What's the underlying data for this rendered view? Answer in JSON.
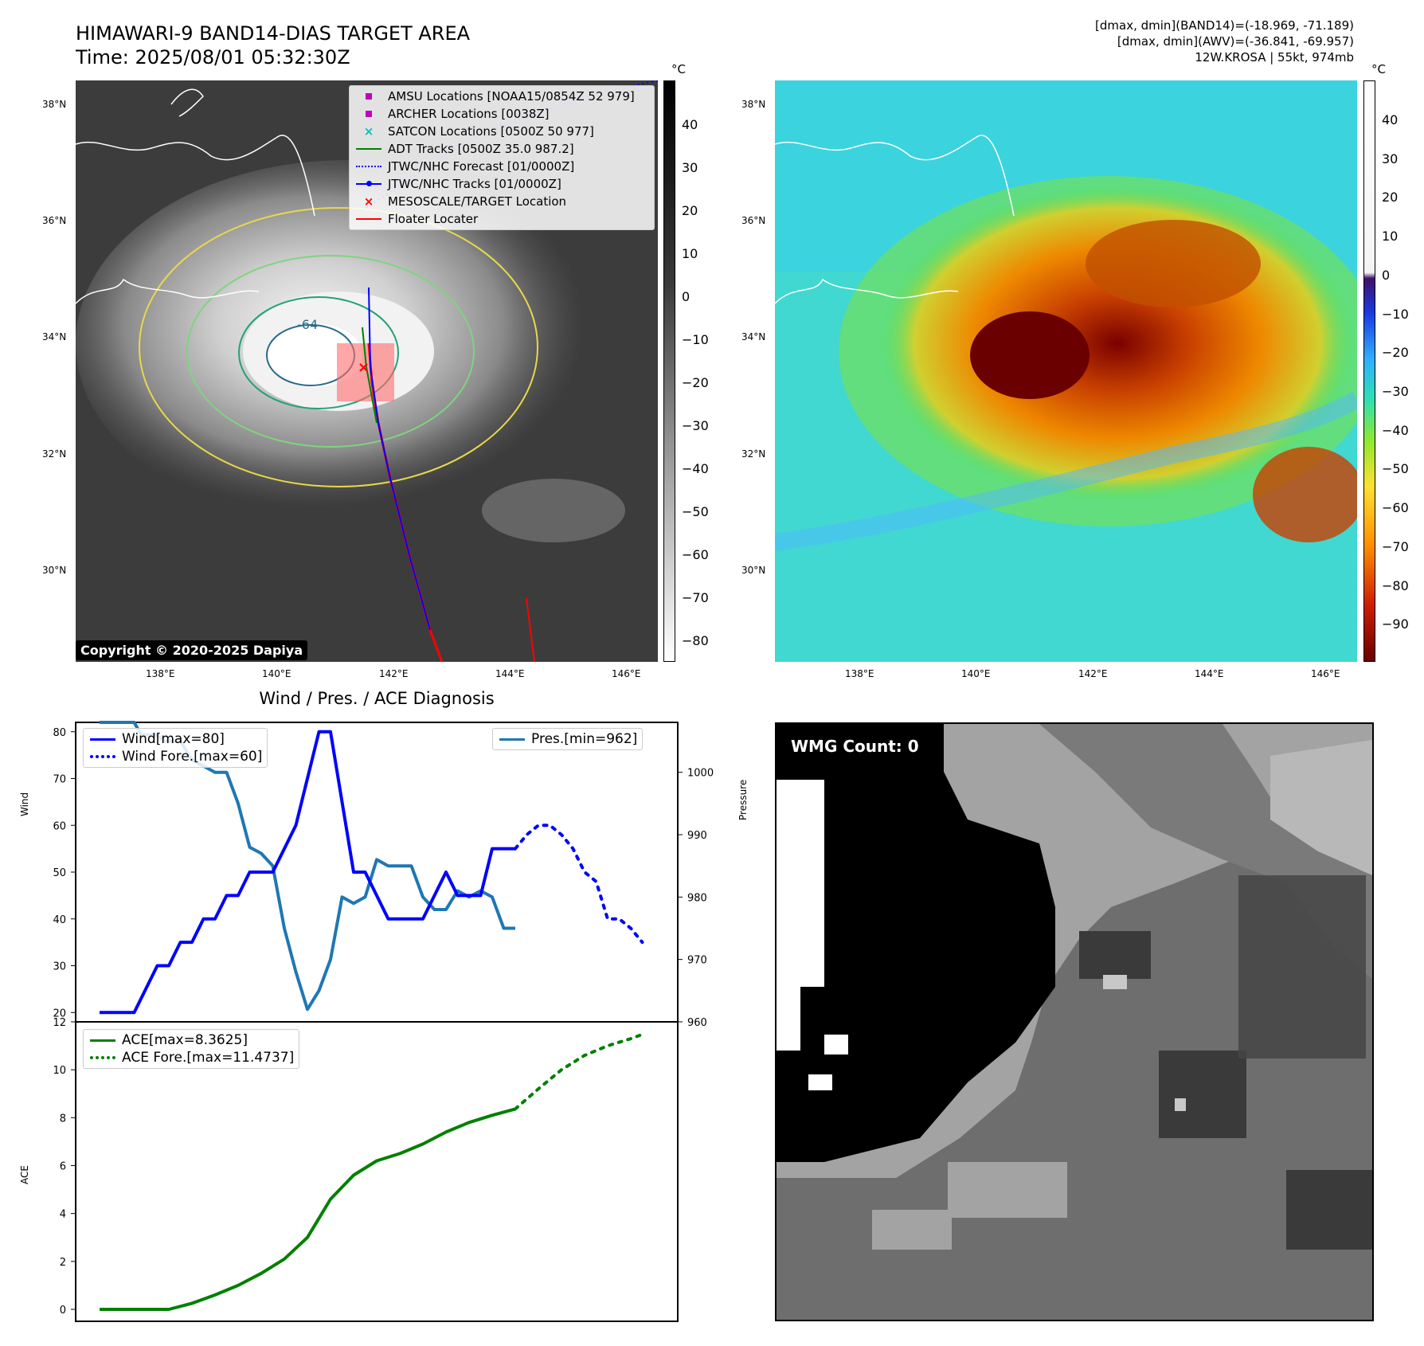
{
  "header": {
    "title_line1": "HIMAWARI-9 BAND14-DIAS TARGET AREA",
    "title_line2": "Time: 2025/08/01 05:32:30Z",
    "info_line1": "[dmax, dmin](BAND14)=(-18.969, -71.189)",
    "info_line2": "[dmax, dmin](AWV)=(-36.841, -69.957)",
    "info_line3": "12W.KROSA | 55kt, 974mb"
  },
  "maps": {
    "lat_labels": [
      "38°N",
      "36°N",
      "34°N",
      "32°N",
      "30°N"
    ],
    "lon_labels": [
      "138°E",
      "140°E",
      "142°E",
      "144°E",
      "146°E"
    ],
    "contour_label": "-64",
    "copyright": "Copyright © 2020-2025 Dapiya"
  },
  "legend_map": {
    "items": [
      {
        "label": "AMSU Locations [NOAA15/0854Z 52 979]",
        "symbol": "square",
        "color": "#bf00bf"
      },
      {
        "label": "ARCHER Locations [0038Z]",
        "symbol": "square",
        "color": "#bf00bf"
      },
      {
        "label": "SATCON Locations [0500Z 50 977]",
        "symbol": "x",
        "color": "#00bfbf"
      },
      {
        "label": "ADT Tracks [0500Z 35.0 987.2]",
        "symbol": "line",
        "color": "#008000"
      },
      {
        "label": "JTWC/NHC Forecast [01/0000Z]",
        "symbol": "dotted",
        "color": "#0000ff"
      },
      {
        "label": "JTWC/NHC Tracks [01/0000Z]",
        "symbol": "line-dot",
        "color": "#0000ff"
      },
      {
        "label": "MESOSCALE/TARGET Location",
        "symbol": "x",
        "color": "#ff0000"
      },
      {
        "label": "Floater Locater",
        "symbol": "line",
        "color": "#ff0000"
      }
    ]
  },
  "colorbar_ir": {
    "unit": "°C",
    "ticks": [
      "40",
      "30",
      "20",
      "10",
      "0",
      "−10",
      "−20",
      "−30",
      "−40",
      "−50",
      "−60",
      "−70",
      "−80"
    ]
  },
  "colorbar_wv": {
    "unit": "°C",
    "ticks": [
      "40",
      "30",
      "20",
      "10",
      "0",
      "−10",
      "−20",
      "−30",
      "−40",
      "−50",
      "−60",
      "−70",
      "−80",
      "−90"
    ]
  },
  "colors": {
    "wind": "#0000ff",
    "pressure": "#1f77b4",
    "ace": "#008000"
  },
  "panel_diag": {
    "subtitle": "Wind / Pres. / ACE Diagnosis",
    "wind_ylabel": "Wind",
    "pressure_ylabel": "Pressure",
    "ace_ylabel": "ACE",
    "wind_ticks": [
      "80",
      "70",
      "60",
      "50",
      "40",
      "30",
      "20"
    ],
    "pressure_ticks": [
      "1000",
      "990",
      "980",
      "970",
      "960"
    ],
    "ace_ticks": [
      "12",
      "10",
      "8",
      "6",
      "4",
      "2",
      "0"
    ],
    "legend_wind": "Wind[max=80]",
    "legend_wind_fore": "Wind Fore.[max=60]",
    "legend_pres": "Pres.[min=962]",
    "legend_ace": "ACE[max=8.3625]",
    "legend_ace_fore": "ACE Fore.[max=11.4737]"
  },
  "chart_data": [
    {
      "type": "line",
      "title": "Wind / Pres. / ACE Diagnosis",
      "ylabel": "Wind",
      "ylim": [
        18,
        82
      ],
      "x_index_range": [
        0,
        24
      ],
      "series": [
        {
          "name": "Wind[max=80]",
          "style": "solid",
          "x": [
            0,
            1.5,
            2.5,
            3,
            3.5,
            4,
            4.5,
            5,
            5.5,
            6,
            6.5,
            7,
            7.5,
            8,
            8.5,
            9,
            9.5,
            10,
            10.5,
            11,
            11.5,
            12,
            12.5,
            13,
            13.5,
            14,
            14.5,
            15,
            15.5,
            16,
            16.5,
            17,
            17.5,
            18
          ],
          "values": [
            20,
            20,
            30,
            30,
            35,
            35,
            40,
            40,
            45,
            45,
            50,
            50,
            50,
            55,
            60,
            70,
            80,
            80,
            65,
            50,
            50,
            45,
            40,
            40,
            40,
            40,
            45,
            50,
            45,
            45,
            45,
            55,
            55,
            55
          ]
        },
        {
          "name": "Wind Fore.[max=60]",
          "style": "dotted",
          "x": [
            18,
            18.5,
            19,
            19.5,
            20,
            20.5,
            21,
            21.5,
            22,
            22.5,
            23,
            23.5
          ],
          "values": [
            55,
            58,
            60,
            60,
            58,
            55,
            50,
            48,
            40,
            40,
            38,
            35
          ]
        }
      ]
    },
    {
      "type": "line",
      "ylabel": "Pressure",
      "ylim": [
        960,
        1008
      ],
      "series": [
        {
          "name": "Pres.[min=962]",
          "x": [
            0,
            1.5,
            1.8,
            2.5,
            2.8,
            3.5,
            4,
            5,
            5.5,
            6,
            6.5,
            7,
            7.5,
            8,
            8.5,
            9,
            9.5,
            10,
            10.5,
            11,
            11.5,
            12,
            12.5,
            13,
            13.5,
            14,
            14.5,
            15,
            15.5,
            16,
            16.5,
            17,
            17.5,
            18
          ],
          "values": [
            1008,
            1008,
            1006,
            1006,
            1005,
            1005,
            1002,
            1000,
            1000,
            995,
            988,
            987,
            985,
            975,
            968,
            962,
            965,
            970,
            980,
            979,
            980,
            986,
            985,
            985,
            985,
            980,
            978,
            978,
            981,
            980,
            981,
            980,
            975,
            975
          ]
        }
      ]
    },
    {
      "type": "line",
      "ylabel": "ACE",
      "ylim": [
        -0.5,
        12
      ],
      "series": [
        {
          "name": "ACE[max=8.3625]",
          "style": "solid",
          "x": [
            0,
            3,
            4,
            5,
            6,
            7,
            8,
            9,
            10,
            11,
            12,
            13,
            14,
            15,
            16,
            17,
            18
          ],
          "values": [
            0,
            0,
            0.25,
            0.6,
            1.0,
            1.5,
            2.1,
            3.0,
            4.6,
            5.6,
            6.2,
            6.5,
            6.9,
            7.4,
            7.8,
            8.1,
            8.3625
          ]
        },
        {
          "name": "ACE Fore.[max=11.4737]",
          "style": "dotted",
          "x": [
            18,
            19,
            20,
            21,
            22,
            23,
            23.5
          ],
          "values": [
            8.3625,
            9.2,
            10.0,
            10.6,
            11.0,
            11.3,
            11.4737
          ]
        }
      ]
    }
  ],
  "panel_wmg": {
    "label": "WMG Count: 0"
  }
}
